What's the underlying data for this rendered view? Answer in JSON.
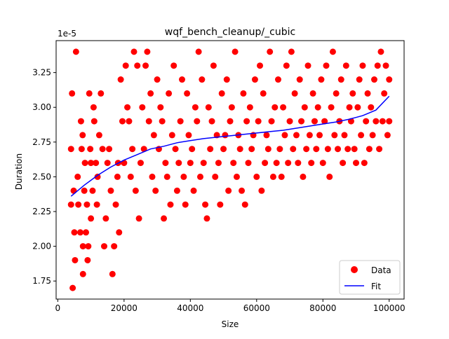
{
  "chart_data": {
    "type": "scatter",
    "title": "wqf_bench_cleanup/_cubic",
    "xlabel": "Size",
    "ylabel": "Duration",
    "y_offset_label": "1e-5",
    "xlim": [
      -500,
      104500
    ],
    "ylim": [
      1.62e-05,
      3.48e-05
    ],
    "xticks": [
      0,
      20000,
      40000,
      60000,
      80000,
      100000
    ],
    "xtick_labels": [
      "0",
      "20000",
      "40000",
      "60000",
      "80000",
      "100000"
    ],
    "yticks": [
      1.75e-05,
      2e-05,
      2.25e-05,
      2.5e-05,
      2.75e-05,
      3e-05,
      3.25e-05
    ],
    "ytick_labels": [
      "1.75",
      "2.00",
      "2.25",
      "2.50",
      "2.75",
      "3.00",
      "3.25"
    ],
    "grid": false,
    "legend": {
      "placement": "lower-right",
      "entries": [
        "Data",
        "Fit"
      ]
    },
    "colors": {
      "data": "#ff0000",
      "fit": "#0000ff"
    },
    "series": [
      {
        "name": "Data",
        "kind": "scatter",
        "points": [
          [
            4500,
            1.7e-05
          ],
          [
            5500,
            3.4e-05
          ],
          [
            4300,
            3.1e-05
          ],
          [
            4000,
            2.7e-05
          ],
          [
            4800,
            2.4e-05
          ],
          [
            4000,
            2.3e-05
          ],
          [
            5000,
            2.1e-05
          ],
          [
            5200,
            1.9e-05
          ],
          [
            6000,
            2.5e-05
          ],
          [
            6200,
            2.3e-05
          ],
          [
            6800,
            2.1e-05
          ],
          [
            7000,
            2.9e-05
          ],
          [
            7200,
            2.7e-05
          ],
          [
            7500,
            2.8e-05
          ],
          [
            7600,
            2e-05
          ],
          [
            7600,
            1.8e-05
          ],
          [
            8000,
            2.4e-05
          ],
          [
            8200,
            2.6e-05
          ],
          [
            8500,
            2.1e-05
          ],
          [
            8800,
            2.3e-05
          ],
          [
            9000,
            1.9e-05
          ],
          [
            9200,
            2e-05
          ],
          [
            9500,
            3.1e-05
          ],
          [
            9800,
            2.7e-05
          ],
          [
            10000,
            2.6e-05
          ],
          [
            10000,
            2.2e-05
          ],
          [
            10500,
            2.4e-05
          ],
          [
            10800,
            3e-05
          ],
          [
            11000,
            2.9e-05
          ],
          [
            11500,
            2.6e-05
          ],
          [
            11800,
            2.3e-05
          ],
          [
            12000,
            2.5e-05
          ],
          [
            12500,
            2.8e-05
          ],
          [
            13000,
            3.1e-05
          ],
          [
            13500,
            2.7e-05
          ],
          [
            14000,
            2e-05
          ],
          [
            14500,
            2.2e-05
          ],
          [
            15000,
            2.6e-05
          ],
          [
            15500,
            2.7e-05
          ],
          [
            16000,
            2.4e-05
          ],
          [
            16500,
            1.8e-05
          ],
          [
            17000,
            2e-05
          ],
          [
            17500,
            2.3e-05
          ],
          [
            18000,
            2.5e-05
          ],
          [
            18200,
            2.6e-05
          ],
          [
            18500,
            2.1e-05
          ],
          [
            19000,
            3.2e-05
          ],
          [
            19500,
            2.9e-05
          ],
          [
            20000,
            2.6e-05
          ],
          [
            20500,
            3.3e-05
          ],
          [
            21000,
            3e-05
          ],
          [
            21500,
            2.9e-05
          ],
          [
            22000,
            2.5e-05
          ],
          [
            22500,
            2.7e-05
          ],
          [
            23000,
            3.4e-05
          ],
          [
            23500,
            2.4e-05
          ],
          [
            24000,
            3.3e-05
          ],
          [
            24500,
            2.2e-05
          ],
          [
            25000,
            2.6e-05
          ],
          [
            25500,
            3e-05
          ],
          [
            26000,
            2.7e-05
          ],
          [
            26500,
            3.3e-05
          ],
          [
            27000,
            3.4e-05
          ],
          [
            27500,
            2.9e-05
          ],
          [
            28000,
            3.1e-05
          ],
          [
            28500,
            2.5e-05
          ],
          [
            29000,
            2.8e-05
          ],
          [
            29500,
            2.4e-05
          ],
          [
            30000,
            3.2e-05
          ],
          [
            30500,
            2.7e-05
          ],
          [
            31000,
            3e-05
          ],
          [
            31500,
            2.9e-05
          ],
          [
            32000,
            2.2e-05
          ],
          [
            32500,
            2.6e-05
          ],
          [
            33000,
            2.5e-05
          ],
          [
            33500,
            3.1e-05
          ],
          [
            34000,
            2.3e-05
          ],
          [
            34500,
            2.8e-05
          ],
          [
            35000,
            3.3e-05
          ],
          [
            35500,
            2.7e-05
          ],
          [
            36000,
            2.4e-05
          ],
          [
            36500,
            2.6e-05
          ],
          [
            37000,
            2.9e-05
          ],
          [
            37500,
            3.2e-05
          ],
          [
            38000,
            2.5e-05
          ],
          [
            38500,
            2.3e-05
          ],
          [
            39000,
            3.1e-05
          ],
          [
            39500,
            2.8e-05
          ],
          [
            40000,
            2.6e-05
          ],
          [
            40500,
            2.7e-05
          ],
          [
            41000,
            2.4e-05
          ],
          [
            41500,
            3e-05
          ],
          [
            42000,
            2.9e-05
          ],
          [
            42500,
            3.4e-05
          ],
          [
            43000,
            2.5e-05
          ],
          [
            43500,
            3.2e-05
          ],
          [
            44000,
            2.6e-05
          ],
          [
            44500,
            2.3e-05
          ],
          [
            45000,
            2.2e-05
          ],
          [
            45500,
            3e-05
          ],
          [
            46000,
            2.7e-05
          ],
          [
            46500,
            2.9e-05
          ],
          [
            47000,
            3.3e-05
          ],
          [
            47500,
            2.5e-05
          ],
          [
            48000,
            2.8e-05
          ],
          [
            48500,
            2.6e-05
          ],
          [
            49000,
            2.3e-05
          ],
          [
            49500,
            3.1e-05
          ],
          [
            50000,
            2.7e-05
          ],
          [
            50500,
            2.8e-05
          ],
          [
            51000,
            3.2e-05
          ],
          [
            51500,
            2.4e-05
          ],
          [
            52000,
            2.9e-05
          ],
          [
            52500,
            3e-05
          ],
          [
            53000,
            2.6e-05
          ],
          [
            53500,
            3.4e-05
          ],
          [
            54000,
            2.5e-05
          ],
          [
            54500,
            2.8e-05
          ],
          [
            55000,
            2.7e-05
          ],
          [
            55500,
            2.4e-05
          ],
          [
            56000,
            3.1e-05
          ],
          [
            56500,
            2.3e-05
          ],
          [
            57000,
            2.9e-05
          ],
          [
            57500,
            2.6e-05
          ],
          [
            58000,
            3e-05
          ],
          [
            58500,
            2.7e-05
          ],
          [
            59000,
            2.8e-05
          ],
          [
            59500,
            3.2e-05
          ],
          [
            60000,
            2.5e-05
          ],
          [
            60500,
            2.9e-05
          ],
          [
            61000,
            3.3e-05
          ],
          [
            61500,
            2.4e-05
          ],
          [
            62000,
            3.1e-05
          ],
          [
            62500,
            2.6e-05
          ],
          [
            63000,
            2.8e-05
          ],
          [
            63500,
            2.7e-05
          ],
          [
            64000,
            3.4e-05
          ],
          [
            64500,
            2.9e-05
          ],
          [
            65000,
            2.5e-05
          ],
          [
            65500,
            3e-05
          ],
          [
            66000,
            2.6e-05
          ],
          [
            66500,
            3.2e-05
          ],
          [
            67000,
            2.7e-05
          ],
          [
            67500,
            2.5e-05
          ],
          [
            68000,
            3e-05
          ],
          [
            68500,
            2.8e-05
          ],
          [
            69000,
            3.3e-05
          ],
          [
            69500,
            2.6e-05
          ],
          [
            70000,
            2.9e-05
          ],
          [
            70500,
            3.4e-05
          ],
          [
            71000,
            2.7e-05
          ],
          [
            71500,
            3.1e-05
          ],
          [
            72000,
            2.8e-05
          ],
          [
            72500,
            2.6e-05
          ],
          [
            73000,
            3.2e-05
          ],
          [
            73500,
            2.9e-05
          ],
          [
            74000,
            2.5e-05
          ],
          [
            74500,
            3e-05
          ],
          [
            75000,
            2.7e-05
          ],
          [
            75500,
            3.3e-05
          ],
          [
            76000,
            2.8e-05
          ],
          [
            76500,
            2.6e-05
          ],
          [
            77000,
            3.1e-05
          ],
          [
            77500,
            2.9e-05
          ],
          [
            78000,
            2.7e-05
          ],
          [
            78500,
            3e-05
          ],
          [
            79000,
            2.8e-05
          ],
          [
            79500,
            3.2e-05
          ],
          [
            80000,
            2.6e-05
          ],
          [
            80500,
            2.9e-05
          ],
          [
            81000,
            3.3e-05
          ],
          [
            81500,
            2.7e-05
          ],
          [
            82000,
            2.5e-05
          ],
          [
            82500,
            3e-05
          ],
          [
            83000,
            3.4e-05
          ],
          [
            83500,
            2.8e-05
          ],
          [
            84000,
            3.1e-05
          ],
          [
            84500,
            2.7e-05
          ],
          [
            85000,
            2.9e-05
          ],
          [
            85500,
            3.2e-05
          ],
          [
            86000,
            2.6e-05
          ],
          [
            86500,
            2.8e-05
          ],
          [
            87000,
            3.3e-05
          ],
          [
            87500,
            2.7e-05
          ],
          [
            88000,
            3e-05
          ],
          [
            88500,
            2.9e-05
          ],
          [
            89000,
            3.1e-05
          ],
          [
            89500,
            2.7e-05
          ],
          [
            90000,
            2.6e-05
          ],
          [
            90500,
            3e-05
          ],
          [
            91000,
            3.2e-05
          ],
          [
            91500,
            2.8e-05
          ],
          [
            92000,
            3.3e-05
          ],
          [
            92500,
            2.6e-05
          ],
          [
            93000,
            2.9e-05
          ],
          [
            93500,
            3.1e-05
          ],
          [
            94000,
            2.7e-05
          ],
          [
            94500,
            3e-05
          ],
          [
            95000,
            2.8e-05
          ],
          [
            95500,
            3.2e-05
          ],
          [
            96000,
            2.9e-05
          ],
          [
            96500,
            3.3e-05
          ],
          [
            97000,
            2.7e-05
          ],
          [
            97500,
            3.4e-05
          ],
          [
            98000,
            2.9e-05
          ],
          [
            98500,
            3.1e-05
          ],
          [
            99000,
            3.3e-05
          ],
          [
            99500,
            2.8e-05
          ],
          [
            100000,
            2.9e-05
          ],
          [
            100000,
            3.2e-05
          ]
        ]
      },
      {
        "name": "Fit",
        "kind": "line",
        "x": [
          4000,
          8000,
          12000,
          16000,
          20000,
          24000,
          28000,
          32000,
          36000,
          40000,
          44000,
          48000,
          52000,
          56000,
          60000,
          64000,
          68000,
          72000,
          76000,
          80000,
          84000,
          88000,
          92000,
          96000,
          100000
        ],
        "y": [
          2.36e-05,
          2.44e-05,
          2.51e-05,
          2.57e-05,
          2.62e-05,
          2.66e-05,
          2.7e-05,
          2.72e-05,
          2.745e-05,
          2.76e-05,
          2.775e-05,
          2.785e-05,
          2.795e-05,
          2.805e-05,
          2.815e-05,
          2.825e-05,
          2.835e-05,
          2.85e-05,
          2.865e-05,
          2.88e-05,
          2.895e-05,
          2.915e-05,
          2.94e-05,
          2.98e-05,
          3.08e-05
        ]
      }
    ]
  }
}
